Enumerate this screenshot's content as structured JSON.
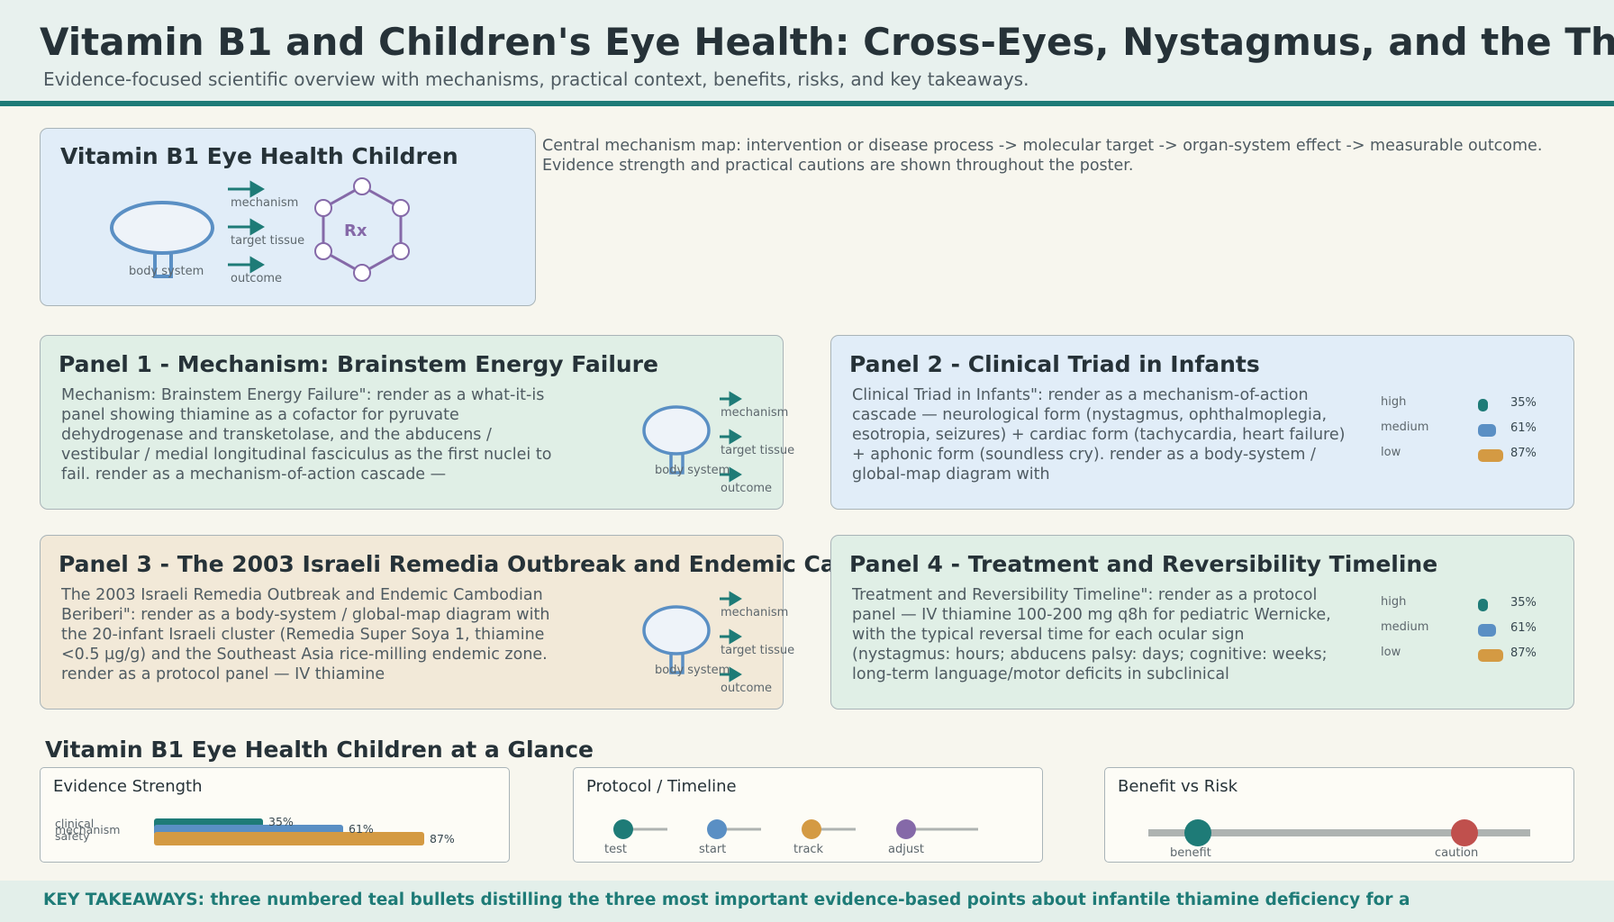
{
  "header": {
    "title": "Vitamin B1 and Children's Eye Health: Cross-Eyes, Nystagmus, and the Th",
    "subtitle": "Evidence-focused scientific overview with mechanisms, practical context, benefits, risks, and key takeaways."
  },
  "colors": {
    "teal": "#1e7b77",
    "blue": "#5a8fc4",
    "orange": "#d49a43",
    "purple": "#8569a8",
    "red": "#c0504d",
    "grey": "#aeb3b1"
  },
  "intro_card": {
    "title": "Vitamin B1 Eye Health Children",
    "arrow_labels": [
      "mechanism",
      "target tissue",
      "outcome"
    ],
    "organ_label": "body system",
    "molecule_label": "Rx"
  },
  "intro_text": "Central mechanism map: intervention or disease process -> molecular target -> organ-system effect -> measurable outcome. Evidence strength and practical cautions are shown throughout the poster.",
  "panels": [
    {
      "title": "Panel 1 - Mechanism: Brainstem Energy Failure",
      "body": "Mechanism: Brainstem Energy Failure\": render as a what-it-is panel showing thiamine as a cofactor for pyruvate dehydrogenase and transketolase, and the abducens / vestibular / medial longitudinal fasciculus as the first nuclei to fail. render as a mechanism-of-action cascade —",
      "arrow_labels": [
        "mechanism",
        "target tissue",
        "outcome"
      ],
      "organ_label": "body system"
    },
    {
      "title": "Panel 2 - Clinical Triad in Infants",
      "body": "Clinical Triad in Infants\": render as a mechanism-of-action cascade — neurological form (nystagmus, ophthalmoplegia, esotropia, seizures) + cardiac form (tachycardia, heart failure) + aphonic form (soundless cry). render as a body-system / global-map diagram with",
      "levels": [
        {
          "label": "high",
          "pct_label": "35%",
          "value": 35
        },
        {
          "label": "medium",
          "pct_label": "61%",
          "value": 61
        },
        {
          "label": "low",
          "pct_label": "87%",
          "value": 87
        }
      ]
    },
    {
      "title": "Panel 3 - The 2003 Israeli Remedia Outbreak and Endemic Ca",
      "body": "The 2003 Israeli Remedia Outbreak and Endemic Cambodian Beriberi\": render as a body-system / global-map diagram with the 20-infant Israeli cluster (Remedia Super Soya 1, thiamine <0.5 µg/g) and the Southeast Asia rice-milling endemic zone. render as a protocol panel — IV thiamine",
      "arrow_labels": [
        "mechanism",
        "target tissue",
        "outcome"
      ],
      "organ_label": "body system"
    },
    {
      "title": "Panel 4 - Treatment and Reversibility Timeline",
      "body": "Treatment and Reversibility Timeline\": render as a protocol panel — IV thiamine 100-200 mg q8h for pediatric Wernicke, with the typical reversal time for each ocular sign (nystagmus: hours; abducens palsy: days; cognitive: weeks; long-term language/motor deficits in subclinical",
      "levels": [
        {
          "label": "high",
          "pct_label": "35%",
          "value": 35
        },
        {
          "label": "medium",
          "pct_label": "61%",
          "value": 61
        },
        {
          "label": "low",
          "pct_label": "87%",
          "value": 87
        }
      ]
    }
  ],
  "glance": {
    "title": "Vitamin B1 Eye Health Children at a Glance",
    "evidence": {
      "heading": "Evidence Strength",
      "bars": [
        {
          "label": "clinical",
          "pct_label": "35%",
          "value": 35
        },
        {
          "label": "mechanism",
          "pct_label": "61%",
          "value": 61
        },
        {
          "label": "safety",
          "pct_label": "87%",
          "value": 87
        }
      ]
    },
    "protocol": {
      "heading": "Protocol / Timeline",
      "steps": [
        "test",
        "start",
        "track",
        "adjust"
      ]
    },
    "benefit_risk": {
      "heading": "Benefit vs Risk",
      "left_label": "benefit",
      "right_label": "caution"
    }
  },
  "takeaways": {
    "text": "KEY TAKEAWAYS: three numbered teal bullets distilling the three most important evidence-based points about infantile thiamine deficiency for a"
  }
}
